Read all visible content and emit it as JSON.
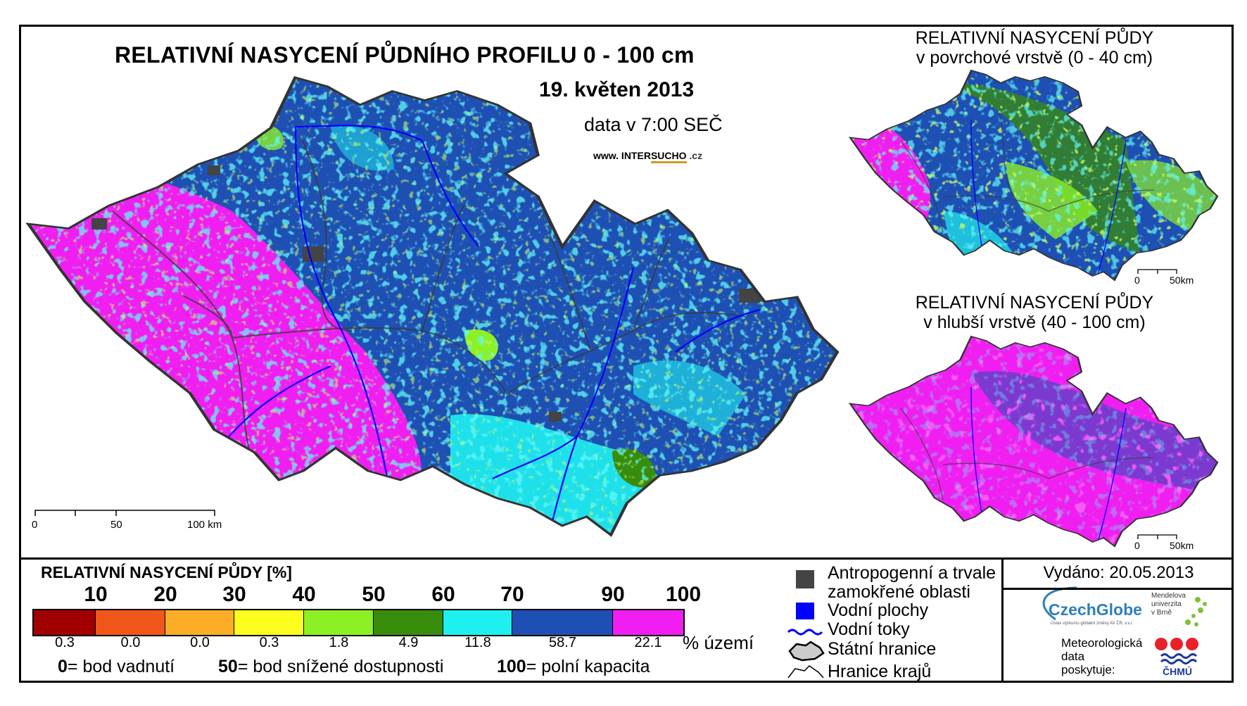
{
  "main": {
    "title": "RELATIVNÍ NASYCENÍ PŮDNÍHO PROFILU 0 - 100 cm",
    "date": "19. květen 2013",
    "time": "data v 7:00 SEČ",
    "website": {
      "prefix": "www. INTER",
      "highlight": "SUCHO",
      "suffix": " .cz"
    },
    "scale": [
      "0",
      "50",
      "100 km"
    ]
  },
  "inset_surface": {
    "title_line1": "RELATIVNÍ NASYCENÍ PŮDY",
    "title_line2": "v povrchové vrstvě (0 - 40 cm)",
    "scale": [
      "0",
      "50km"
    ]
  },
  "inset_deep": {
    "title_line1": "RELATIVNÍ NASYCENÍ PŮDY",
    "title_line2": "v hlubší vrstvě (40 - 100 cm)",
    "scale": [
      "0",
      "50km"
    ]
  },
  "legend": {
    "title": "RELATIVNÍ NASYCENÍ PŮDY [%]",
    "ticks": [
      "10",
      "20",
      "30",
      "40",
      "50",
      "60",
      "70",
      "90",
      "100"
    ],
    "classes": [
      {
        "color": "#a00000",
        "pct": "0.3"
      },
      {
        "color": "#f0561a",
        "pct": "0.0"
      },
      {
        "color": "#fbad28",
        "pct": "0.0"
      },
      {
        "color": "#fdfd1e",
        "pct": "0.3"
      },
      {
        "color": "#8cf026",
        "pct": "1.8"
      },
      {
        "color": "#388c0c",
        "pct": "4.9"
      },
      {
        "color": "#1ef0f0",
        "pct": "11.8"
      },
      {
        "color": "#1e50b4",
        "pct": "58.7"
      },
      {
        "color": "#f01ef0",
        "pct": "22.1"
      }
    ],
    "pct_unit": "% území",
    "definitions": [
      {
        "value": "0",
        "text": "= bod vadnutí"
      },
      {
        "value": "50",
        "text": "= bod snížené dostupnosti"
      },
      {
        "value": "100",
        "text": "= polní kapacita"
      }
    ]
  },
  "symbols": {
    "anthropogenic_line1": "Antropogenní a trvale",
    "anthropogenic_line2": "zamokřené oblasti",
    "water_bodies": "Vodní plochy",
    "rivers": "Vodní toky",
    "state_border": "Státní hranice",
    "region_border": "Hranice krajů"
  },
  "footer": {
    "published": "Vydáno: 20.05.2013",
    "czechglobe": "CzechGlobe",
    "czechglobe_sub": "Ústav výzkumu globální změny AV ČR, v.v.i.",
    "mendel": "Mendelova\nuniverzita\nv Brně",
    "met": "Meteorologická\ndata\nposkytuje:",
    "chmu": "ČHMÚ"
  },
  "colors": {
    "magenta": "#f01ef0",
    "blue": "#1e50b4",
    "cyan": "#1ef0f0",
    "dark_green": "#388c0c",
    "light_green": "#8cf026",
    "river": "#0000ff",
    "anthropogenic": "#444444"
  }
}
